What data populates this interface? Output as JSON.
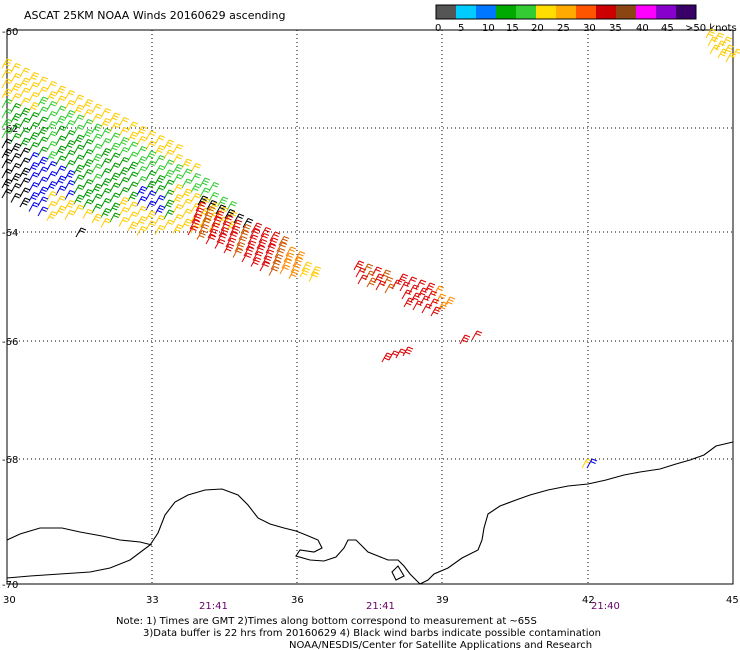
{
  "title": "ASCAT 25KM NOAA Winds 20160629 ascending",
  "legend": {
    "colors": [
      "#555555",
      "#00ccff",
      "#0077ff",
      "#00aa00",
      "#33cc33",
      "#ffdd00",
      "#ffaa00",
      "#ff5500",
      "#cc0000",
      "#8b4513",
      "#ff00ff",
      "#8800cc",
      "#3a006a"
    ],
    "labels": [
      "0",
      "5",
      "10",
      "15",
      "20",
      "25",
      "30",
      "35",
      "40",
      "45",
      ">50 knots"
    ]
  },
  "x_labels": [
    "30",
    "33",
    "36",
    "39",
    "42",
    "45"
  ],
  "y_labels": [
    "-60",
    "-62",
    "-64",
    "-66",
    "-68",
    "-70"
  ],
  "times": [
    "21:41",
    "21:41",
    "21:40"
  ],
  "notes": [
    "Note: 1) Times are GMT 2)Times along bottom correspond to measurement at ~65S",
    "3)Data buffer is 22 hrs from 20160629 4) Black wind barbs indicate possible contamination",
    "NOAA/NESDIS/Center for Satellite Applications and Research"
  ],
  "barb_colors": {
    "yellow": "#ffcc00",
    "lightgreen": "#33cc33",
    "green": "#009900",
    "blue": "#0000ee",
    "black": "#000000",
    "orange": "#ff8800",
    "red": "#dd0000",
    "darkorange": "#cc5500"
  }
}
